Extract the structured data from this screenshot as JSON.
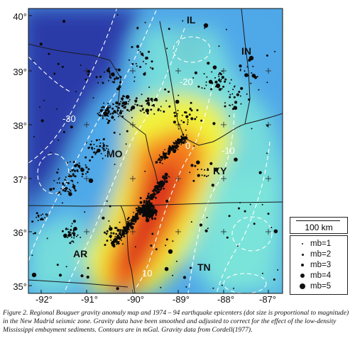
{
  "map": {
    "lat_labels": [
      "40°",
      "39°",
      "38°",
      "37°",
      "36°",
      "35°"
    ],
    "lon_labels": [
      "-92°",
      "-91°",
      "-90°",
      "-89°",
      "-88°",
      "-87°"
    ],
    "state_labels": [
      "IL",
      "IN",
      "MO",
      "KY",
      "AR",
      "TN"
    ],
    "contour_labels": [
      "-30",
      "-20",
      "0",
      "-10",
      "10"
    ],
    "colors": {
      "low": "#2b3aa8",
      "mid_low": "#4fa8e8",
      "mid": "#7ee8d8",
      "mid_high": "#f2f23a",
      "high": "#f47a1e",
      "peak": "#d8261a"
    }
  },
  "scale_bar": {
    "label": "100 km"
  },
  "legend": {
    "items": [
      {
        "label": "mb=1",
        "magnitude": 1
      },
      {
        "label": "mb=2",
        "magnitude": 2
      },
      {
        "label": "mb=3",
        "magnitude": 3
      },
      {
        "label": "mb=4",
        "magnitude": 4
      },
      {
        "label": "mb=5",
        "magnitude": 5
      }
    ]
  },
  "caption": {
    "text": "Figure 2.  Regional Bouguer gravity anomaly map and 1974 – 94 earthquake epicenters (dot size is proportional to magnitude)  in the New Madrid seismic zone.  Gravity data have been smoothed and adjusted to correct for the effect of the low-density Mississippi embayment sediments.  Contours are in mGal.  Gravity data from Cordell(1977)."
  }
}
